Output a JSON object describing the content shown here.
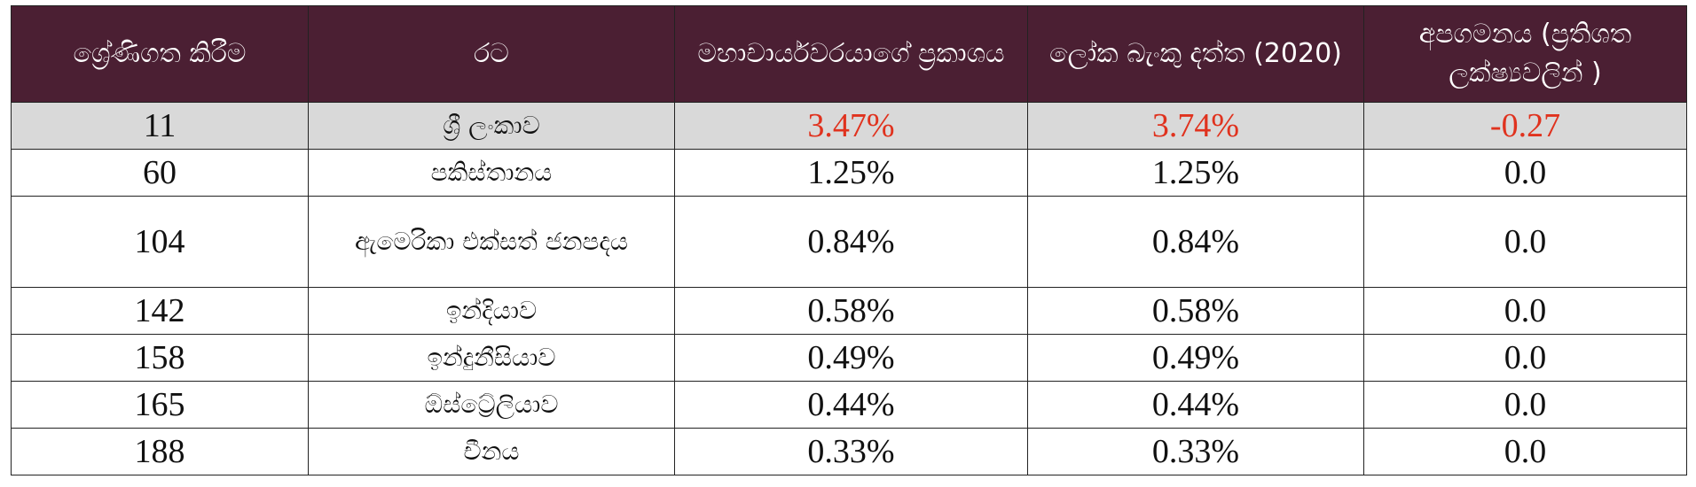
{
  "table": {
    "header": [
      "ශ්‍රේණිගත කිරීම",
      "රට",
      "මහාචාර්යවරයාගේ ප්‍රකාශය",
      "ලෝක බැංකු දත්ත (2020)",
      "අපගමනය (ප්‍රතිශත ලක්ෂ්‍යවලින් )"
    ],
    "rows": [
      [
        "11",
        "ශ්‍රී ලංකාව",
        "3.47%",
        "3.74%",
        "-0.27"
      ],
      [
        "60",
        "පකිස්තානය",
        "1.25%",
        "1.25%",
        "0.0"
      ],
      [
        "104",
        "ඇමෙරිකා එක්සත් ජනපදය",
        "0.84%",
        "0.84%",
        "0.0"
      ],
      [
        "142",
        "ඉන්දියාව",
        "0.58%",
        "0.58%",
        "0.0"
      ],
      [
        "158",
        "ඉන්දුනීසියාව",
        "0.49%",
        "0.49%",
        "0.0"
      ],
      [
        "165",
        "ඕස්ට්‍රේලියාව",
        "0.44%",
        "0.44%",
        "0.0"
      ],
      [
        "188",
        "චීනය",
        "0.33%",
        "0.33%",
        "0.0"
      ]
    ]
  }
}
